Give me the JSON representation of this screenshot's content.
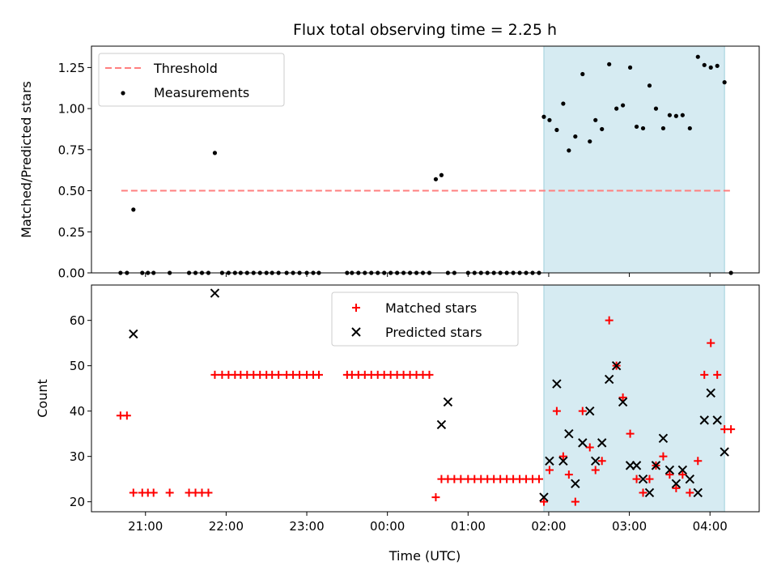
{
  "figure": {
    "title": "Flux total observing time = 2.25 h",
    "xlabel": "Time (UTC)",
    "x_tick_labels": [
      "21:00",
      "22:00",
      "23:00",
      "00:00",
      "01:00",
      "02:00",
      "03:00",
      "04:00"
    ],
    "shaded_span_color": "#add8e6"
  },
  "chart_data": [
    {
      "type": "scatter",
      "panel": "top",
      "ylabel": "Matched/Predicted stars",
      "ylim": [
        0,
        1.38
      ],
      "y_ticks": [
        0,
        0.25,
        0.5,
        0.75,
        1.0,
        1.25
      ],
      "y_tick_labels": [
        "0.00",
        "0.25",
        "0.50",
        "0.75",
        "1.00",
        "1.25"
      ],
      "x_unit": "hours since 20:00 UTC",
      "xlim": [
        0.33,
        8.61
      ],
      "shaded_span": [
        5.94,
        8.18
      ],
      "legend_location": "upper left",
      "threshold": {
        "name": "Threshold",
        "value": 0.5,
        "x_range": [
          0.7,
          8.27
        ],
        "color": "#ff7f7f",
        "style": "dashed"
      },
      "series": [
        {
          "name": "Measurements",
          "color": "#000000",
          "x": [
            0.69,
            0.77,
            0.85,
            0.96,
            1.03,
            1.1,
            1.3,
            1.54,
            1.62,
            1.7,
            1.78,
            1.86,
            1.95,
            2.03,
            2.11,
            2.18,
            2.26,
            2.34,
            2.42,
            2.5,
            2.57,
            2.65,
            2.75,
            2.83,
            2.91,
            3.0,
            3.08,
            3.15,
            3.5,
            3.56,
            3.64,
            3.72,
            3.8,
            3.88,
            3.96,
            4.04,
            4.12,
            4.2,
            4.28,
            4.36,
            4.44,
            4.52,
            4.6,
            4.67,
            4.75,
            4.83,
            5.0,
            5.08,
            5.16,
            5.24,
            5.32,
            5.4,
            5.48,
            5.56,
            5.64,
            5.72,
            5.8,
            5.88,
            5.94,
            6.01,
            6.1,
            6.18,
            6.25,
            6.33,
            6.42,
            6.51,
            6.58,
            6.66,
            6.75,
            6.84,
            6.92,
            7.01,
            7.09,
            7.17,
            7.25,
            7.33,
            7.42,
            7.5,
            7.58,
            7.66,
            7.75,
            7.85,
            7.93,
            8.01,
            8.09,
            8.18,
            8.26
          ],
          "y": [
            0,
            0,
            0.385,
            0,
            0,
            0,
            0,
            0,
            0,
            0,
            0,
            0.73,
            0,
            0,
            0,
            0,
            0,
            0,
            0,
            0,
            0,
            0,
            0,
            0,
            0,
            0,
            0,
            0,
            0,
            0,
            0,
            0,
            0,
            0,
            0,
            0,
            0,
            0,
            0,
            0,
            0,
            0,
            0.57,
            0.595,
            0,
            0,
            0,
            0,
            0,
            0,
            0,
            0,
            0,
            0,
            0,
            0,
            0,
            0,
            0.95,
            0.93,
            0.87,
            1.03,
            0.745,
            0.83,
            1.21,
            0.8,
            0.93,
            0.875,
            1.27,
            1.0,
            1.02,
            1.25,
            0.89,
            0.88,
            1.14,
            1.0,
            0.88,
            0.96,
            0.955,
            0.96,
            0.88,
            1.315,
            1.265,
            1.25,
            1.26,
            1.16,
            0
          ]
        }
      ]
    },
    {
      "type": "scatter",
      "panel": "bottom",
      "ylabel": "Count",
      "ylim": [
        17.8,
        67.8
      ],
      "y_ticks": [
        20,
        30,
        40,
        50,
        60
      ],
      "y_tick_labels": [
        "20",
        "30",
        "40",
        "50",
        "60"
      ],
      "x_unit": "hours since 20:00 UTC",
      "xlim": [
        0.33,
        8.61
      ],
      "shaded_span": [
        5.94,
        8.18
      ],
      "legend_location": "upper center",
      "series": [
        {
          "name": "Matched stars",
          "marker": "plus",
          "color": "#ff0000",
          "x": [
            0.69,
            0.77,
            0.85,
            0.96,
            1.03,
            1.1,
            1.3,
            1.54,
            1.62,
            1.7,
            1.78,
            1.86,
            1.95,
            2.03,
            2.11,
            2.18,
            2.26,
            2.34,
            2.42,
            2.5,
            2.57,
            2.65,
            2.75,
            2.83,
            2.91,
            3.0,
            3.08,
            3.15,
            3.5,
            3.56,
            3.64,
            3.72,
            3.8,
            3.88,
            3.96,
            4.04,
            4.12,
            4.2,
            4.28,
            4.36,
            4.44,
            4.52,
            4.6,
            4.67,
            4.75,
            4.83,
            4.91,
            5.0,
            5.08,
            5.16,
            5.24,
            5.32,
            5.4,
            5.48,
            5.56,
            5.64,
            5.72,
            5.8,
            5.88,
            5.94,
            6.01,
            6.1,
            6.18,
            6.25,
            6.33,
            6.42,
            6.51,
            6.58,
            6.66,
            6.75,
            6.84,
            6.92,
            7.01,
            7.09,
            7.17,
            7.25,
            7.33,
            7.42,
            7.5,
            7.58,
            7.66,
            7.75,
            7.85,
            7.93,
            8.01,
            8.09,
            8.18,
            8.26
          ],
          "y": [
            39,
            39,
            22,
            22,
            22,
            22,
            22,
            22,
            22,
            22,
            22,
            48,
            48,
            48,
            48,
            48,
            48,
            48,
            48,
            48,
            48,
            48,
            48,
            48,
            48,
            48,
            48,
            48,
            48,
            48,
            48,
            48,
            48,
            48,
            48,
            48,
            48,
            48,
            48,
            48,
            48,
            48,
            21,
            25,
            25,
            25,
            25,
            25,
            25,
            25,
            25,
            25,
            25,
            25,
            25,
            25,
            25,
            25,
            25,
            20,
            27,
            40,
            30,
            26,
            20,
            40,
            32,
            27,
            29,
            60,
            50,
            43,
            35,
            25,
            22,
            25,
            28,
            30,
            26,
            23,
            26,
            22,
            29,
            48,
            55,
            48,
            36,
            36
          ]
        },
        {
          "name": "Predicted stars",
          "marker": "x",
          "color": "#000000",
          "x": [
            0.85,
            1.86,
            4.67,
            4.75,
            5.94,
            6.01,
            6.1,
            6.18,
            6.25,
            6.33,
            6.42,
            6.51,
            6.58,
            6.66,
            6.75,
            6.84,
            6.92,
            7.01,
            7.09,
            7.17,
            7.25,
            7.33,
            7.42,
            7.5,
            7.58,
            7.66,
            7.75,
            7.85,
            7.93,
            8.01,
            8.09,
            8.18
          ],
          "y": [
            57,
            66,
            37,
            42,
            21,
            29,
            46,
            29,
            35,
            24,
            33,
            40,
            29,
            33,
            47,
            50,
            42,
            28,
            28,
            25,
            22,
            28,
            34,
            27,
            24,
            27,
            25,
            22,
            38,
            44,
            38,
            31
          ]
        }
      ]
    }
  ]
}
